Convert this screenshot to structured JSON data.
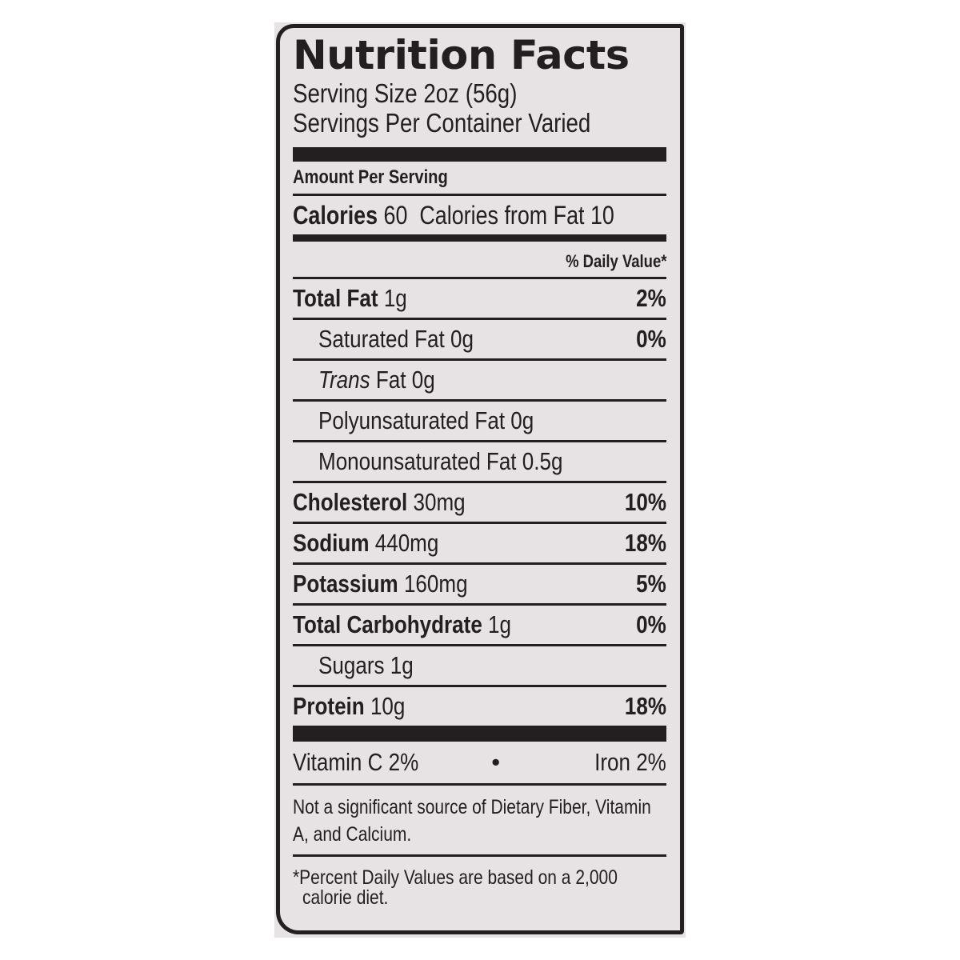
{
  "title": "Nutrition Facts",
  "serving_size": "Serving Size 2oz (56g)",
  "servings_per_container": "Servings Per Container Varied",
  "amount_per_serving": "Amount Per Serving",
  "calories": {
    "label": "Calories",
    "value": "60",
    "from_fat_label": "Calories from Fat",
    "from_fat_value": "10"
  },
  "daily_value_header": "% Daily Value*",
  "nutrients": [
    {
      "name": "Total Fat",
      "amount": "1g",
      "dv": "2%",
      "bold": true,
      "indent": false
    },
    {
      "name": "Saturated Fat",
      "amount": "0g",
      "dv": "0%",
      "bold": false,
      "indent": true
    },
    {
      "name": "Trans",
      "name_suffix": "Fat",
      "amount": "0g",
      "dv": "",
      "bold": false,
      "indent": true
    },
    {
      "name": "Polyunsaturated Fat",
      "amount": "0g",
      "dv": "",
      "bold": false,
      "indent": true
    },
    {
      "name": "Monounsaturated Fat",
      "amount": "0.5g",
      "dv": "",
      "bold": false,
      "indent": true
    },
    {
      "name": "Cholesterol",
      "amount": "30mg",
      "dv": "10%",
      "bold": true,
      "indent": false
    },
    {
      "name": "Sodium",
      "amount": "440mg",
      "dv": "18%",
      "bold": true,
      "indent": false
    },
    {
      "name": "Potassium",
      "amount": "160mg",
      "dv": "5%",
      "bold": true,
      "indent": false
    },
    {
      "name": "Total Carbohydrate",
      "amount": "1g",
      "dv": "0%",
      "bold": true,
      "indent": false
    },
    {
      "name": "Sugars",
      "amount": "1g",
      "dv": "",
      "bold": false,
      "indent": true
    },
    {
      "name": "Protein",
      "amount": "10g",
      "dv": "18%",
      "bold": true,
      "indent": false
    }
  ],
  "vitamins": {
    "left": "Vitamin C 2%",
    "separator": "•",
    "right": "Iron 2%"
  },
  "note": "Not a significant source of Dietary Fiber, Vitamin A, and Calcium.",
  "footnote_line1": "*Percent Daily Values are based on a 2,000",
  "footnote_line2": "calorie diet.",
  "colors": {
    "ink": "#231f20",
    "label_background": "#e7e2e4"
  }
}
